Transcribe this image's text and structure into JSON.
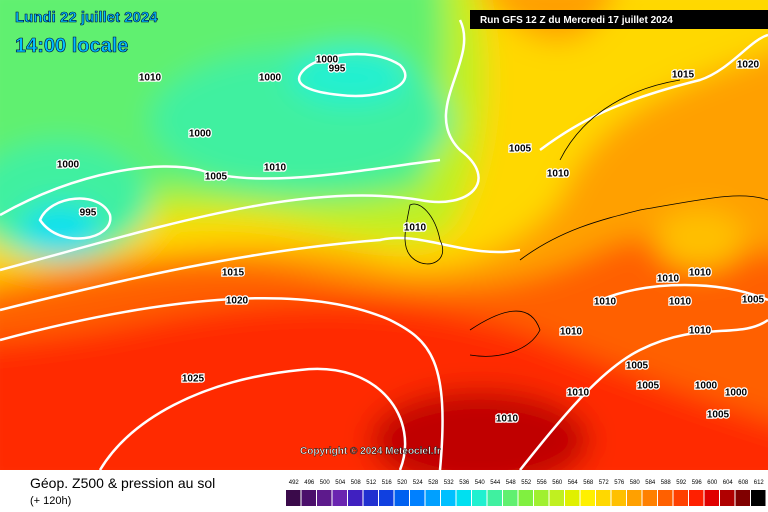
{
  "header": {
    "date": "Lundi 22 juillet 2024",
    "time": "14:00 locale",
    "run": "Run GFS 12 Z du Mercredi 17 juillet 2024"
  },
  "isobar_labels": [
    "1010",
    "1000",
    "1000",
    "995",
    "1000",
    "1000",
    "1005",
    "1010",
    "995",
    "1015",
    "1020",
    "1025",
    "1005",
    "1010",
    "1010",
    "1015",
    "1020",
    "1010",
    "1010",
    "1010",
    "1010",
    "1005",
    "1010",
    "1010",
    "1005",
    "1005",
    "1000",
    "1000",
    "1005",
    "1010",
    "1010"
  ],
  "copyright": "Copyright © 2024 Meteociel.fr",
  "footer": {
    "title": "Géop. Z500 & pression au sol",
    "lead": "(+ 120h)"
  },
  "scale": [
    {
      "label": 492,
      "color": "#3a0a4a"
    },
    {
      "label": 496,
      "color": "#4b0f6b"
    },
    {
      "label": 500,
      "color": "#5d1a8c"
    },
    {
      "label": 504,
      "color": "#6a24b0"
    },
    {
      "label": 508,
      "color": "#4020c0"
    },
    {
      "label": 512,
      "color": "#2030d0"
    },
    {
      "label": 516,
      "color": "#1040e0"
    },
    {
      "label": 520,
      "color": "#0060f0"
    },
    {
      "label": 524,
      "color": "#0080ff"
    },
    {
      "label": 528,
      "color": "#00a0ff"
    },
    {
      "label": 532,
      "color": "#00c0ff"
    },
    {
      "label": 536,
      "color": "#00e0f0"
    },
    {
      "label": 540,
      "color": "#20f0d0"
    },
    {
      "label": 544,
      "color": "#40f0a0"
    },
    {
      "label": 548,
      "color": "#60f070"
    },
    {
      "label": 552,
      "color": "#80f040"
    },
    {
      "label": 556,
      "color": "#a0f030"
    },
    {
      "label": 560,
      "color": "#c0f020"
    },
    {
      "label": 564,
      "color": "#e0f000"
    },
    {
      "label": 568,
      "color": "#fff000"
    },
    {
      "label": 572,
      "color": "#ffd800"
    },
    {
      "label": 576,
      "color": "#ffc000"
    },
    {
      "label": 580,
      "color": "#ffa000"
    },
    {
      "label": 584,
      "color": "#ff8000"
    },
    {
      "label": 588,
      "color": "#ff6000"
    },
    {
      "label": 592,
      "color": "#ff4000"
    },
    {
      "label": 596,
      "color": "#ff2000"
    },
    {
      "label": 600,
      "color": "#e00000"
    },
    {
      "label": 604,
      "color": "#b00000"
    },
    {
      "label": 608,
      "color": "#800000"
    },
    {
      "label": 612,
      "color": "#000000"
    }
  ]
}
